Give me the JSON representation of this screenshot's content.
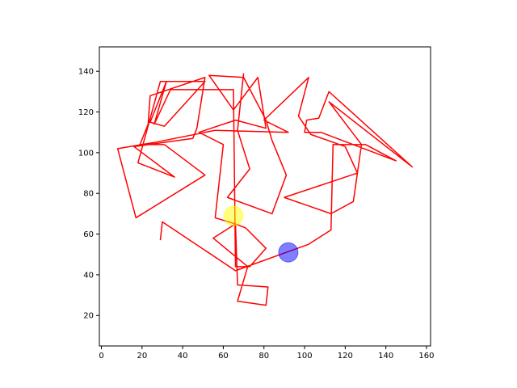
{
  "chart_data": {
    "type": "scatter",
    "title": "",
    "xlabel": "",
    "ylabel": "",
    "xlim": [
      -1,
      162
    ],
    "ylim": [
      152,
      5
    ],
    "x_ticks": [
      0,
      20,
      40,
      60,
      80,
      100,
      120,
      140,
      160
    ],
    "y_ticks": [
      20,
      40,
      60,
      80,
      100,
      120,
      140
    ],
    "grid": false,
    "background_shape": {
      "color": "#ffc0cb",
      "region": {
        "x": [
          -1,
          162
        ],
        "y": [
          5,
          152
        ]
      }
    },
    "foreground_shape": {
      "color": "#ffffff",
      "polygon": [
        [
          76,
          6
        ],
        [
          94,
          10
        ],
        [
          110,
          25
        ],
        [
          121,
          38
        ],
        [
          124,
          42
        ],
        [
          119,
          60
        ],
        [
          112,
          67
        ],
        [
          113,
          88
        ],
        [
          124,
          76
        ],
        [
          131,
          73
        ],
        [
          133,
          76
        ],
        [
          146,
          78
        ],
        [
          147,
          86
        ],
        [
          153,
          92
        ],
        [
          154,
          97
        ],
        [
          152,
          100
        ],
        [
          143,
          100
        ],
        [
          129,
          100
        ],
        [
          113,
          100
        ],
        [
          111,
          112
        ],
        [
          111,
          125
        ],
        [
          110,
          127
        ],
        [
          117,
          135
        ],
        [
          110,
          143
        ],
        [
          103,
          141
        ],
        [
          102,
          147
        ],
        [
          94,
          147
        ],
        [
          90,
          134
        ],
        [
          102,
          135
        ],
        [
          92,
          132
        ],
        [
          79,
          133
        ],
        [
          64,
          141
        ],
        [
          59,
          147
        ],
        [
          47,
          146
        ],
        [
          49,
          137
        ],
        [
          35,
          132
        ],
        [
          39,
          126
        ],
        [
          49,
          125
        ],
        [
          48,
          119
        ],
        [
          45,
          112
        ],
        [
          38,
          110
        ],
        [
          14,
          103
        ],
        [
          4,
          98
        ],
        [
          5,
          86
        ],
        [
          13,
          83
        ],
        [
          12,
          77
        ],
        [
          23,
          72
        ],
        [
          22,
          65
        ],
        [
          27,
          61
        ],
        [
          32,
          70
        ],
        [
          34,
          60
        ],
        [
          36,
          48
        ],
        [
          32,
          39
        ],
        [
          39,
          19
        ],
        [
          62,
          9
        ]
      ]
    },
    "series": [
      {
        "type": "line",
        "color": "#ff0000",
        "points": [
          [
            29,
            57
          ],
          [
            30,
            66
          ],
          [
            66,
            42
          ],
          [
            102,
            55
          ],
          [
            113,
            62
          ],
          [
            114,
            104
          ],
          [
            130,
            104
          ],
          [
            145,
            96
          ],
          [
            108,
            110
          ],
          [
            100,
            110
          ],
          [
            101,
            116
          ],
          [
            107,
            117
          ],
          [
            112,
            130
          ],
          [
            153,
            93
          ],
          [
            112,
            125
          ],
          [
            128,
            104
          ],
          [
            124,
            76
          ],
          [
            113,
            70
          ],
          [
            90,
            78
          ],
          [
            126,
            90
          ],
          [
            120,
            103
          ],
          [
            103,
            109
          ],
          [
            97,
            118
          ],
          [
            102,
            137
          ],
          [
            80,
            116
          ],
          [
            92,
            110
          ],
          [
            56,
            111
          ],
          [
            26,
            105
          ],
          [
            8,
            102
          ],
          [
            17,
            68
          ],
          [
            51,
            89
          ],
          [
            31,
            104
          ],
          [
            19,
            104
          ],
          [
            23,
            114
          ],
          [
            24,
            128
          ],
          [
            51,
            137
          ],
          [
            47,
            112
          ],
          [
            45,
            107
          ],
          [
            16,
            103
          ],
          [
            36,
            88
          ],
          [
            18,
            95
          ],
          [
            29,
            135
          ],
          [
            51,
            135
          ],
          [
            31,
            113
          ],
          [
            24,
            115
          ],
          [
            32,
            135
          ],
          [
            26,
            114
          ],
          [
            34,
            131
          ],
          [
            65,
            131
          ],
          [
            66,
            44
          ],
          [
            73,
            44
          ],
          [
            81,
            53
          ],
          [
            71,
            63
          ],
          [
            66,
            65
          ],
          [
            55,
            58
          ],
          [
            72,
            44
          ],
          [
            67,
            27
          ],
          [
            81,
            25
          ],
          [
            82,
            34
          ],
          [
            67,
            35
          ],
          [
            66,
            65
          ],
          [
            56,
            68
          ],
          [
            60,
            104
          ],
          [
            48,
            110
          ],
          [
            66,
            116
          ],
          [
            81,
            112
          ],
          [
            77,
            137
          ],
          [
            65,
            121
          ],
          [
            53,
            138
          ],
          [
            70,
            137
          ],
          [
            81,
            116
          ],
          [
            84,
            106
          ],
          [
            91,
            89
          ],
          [
            84,
            70
          ],
          [
            62,
            78
          ],
          [
            73,
            92
          ],
          [
            67,
            111
          ],
          [
            70,
            139
          ]
        ]
      }
    ],
    "markers": [
      {
        "shape": "circle",
        "x": 92,
        "y": 51,
        "color": "#0000ff",
        "alpha": 0.5
      },
      {
        "shape": "circle",
        "x": 65,
        "y": 69,
        "color": "#ffff00",
        "alpha": 0.5
      }
    ]
  }
}
